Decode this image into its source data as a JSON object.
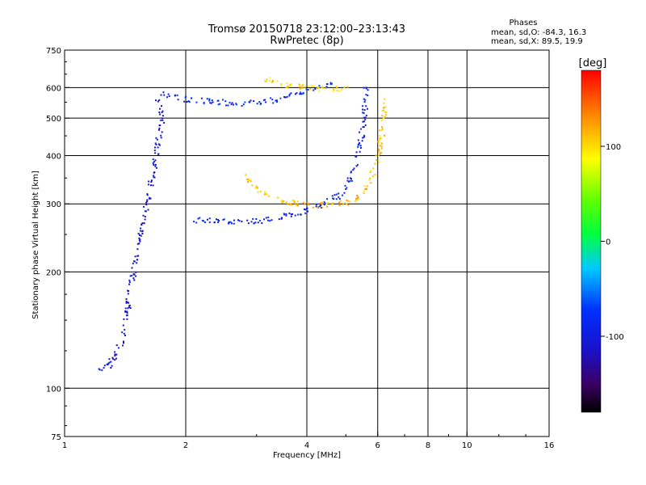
{
  "header": {
    "title": "Tromsø 20150718 23:12:00–23:13:43",
    "subtitle": "RwPretec (8p)"
  },
  "stats": {
    "heading": "Phases",
    "line_o": "mean, sd,O: -84.3, 16.3",
    "line_x": "mean, sd,X:  89.5, 19.9"
  },
  "colorbar": {
    "label": "[deg]",
    "ticks": [
      {
        "value": 100,
        "label": "100"
      },
      {
        "value": 0,
        "label": "0"
      },
      {
        "value": -100,
        "label": "-100"
      }
    ],
    "range": [
      -180,
      180
    ],
    "colormap": "rainbow-black-violet-blue-cyan-green-yellow-red"
  },
  "chart_data": {
    "type": "scatter",
    "xlabel": "Frequency [MHz]",
    "ylabel": "Stationary phase Virtual Height [km]",
    "xscale": "log",
    "yscale": "log",
    "xlim": [
      1,
      16
    ],
    "ylim": [
      75,
      750
    ],
    "grid": true,
    "xticks": [
      {
        "value": 1,
        "label": "1",
        "major": false
      },
      {
        "value": 2,
        "label": "2",
        "major": true
      },
      {
        "value": 4,
        "label": "4",
        "major": true
      },
      {
        "value": 6,
        "label": "6",
        "major": true
      },
      {
        "value": 8,
        "label": "8",
        "major": true
      },
      {
        "value": 10,
        "label": "10",
        "major": true
      },
      {
        "value": 16,
        "label": "16",
        "major": false
      }
    ],
    "yticks": [
      {
        "value": 75,
        "label": "75",
        "major": false
      },
      {
        "value": 100,
        "label": "100",
        "major": true
      },
      {
        "value": 200,
        "label": "200",
        "major": true
      },
      {
        "value": 300,
        "label": "300",
        "major": true
      },
      {
        "value": 400,
        "label": "400",
        "major": true
      },
      {
        "value": 500,
        "label": "500",
        "major": true
      },
      {
        "value": 600,
        "label": "600",
        "major": true
      },
      {
        "value": 750,
        "label": "750",
        "major": false
      }
    ],
    "traces": [
      {
        "description": "O-mode F region trace",
        "phase_deg": -95,
        "points": [
          [
            2.1,
            272
          ],
          [
            2.3,
            272
          ],
          [
            2.5,
            270
          ],
          [
            2.8,
            270
          ],
          [
            3.2,
            272
          ],
          [
            3.6,
            280
          ],
          [
            4.0,
            288
          ],
          [
            4.4,
            300
          ],
          [
            4.8,
            315
          ],
          [
            5.1,
            340
          ],
          [
            5.3,
            380
          ],
          [
            5.45,
            430
          ],
          [
            5.55,
            500
          ],
          [
            5.6,
            560
          ],
          [
            5.65,
            610
          ]
        ]
      },
      {
        "description": "X-mode F region trace",
        "phase_deg": 110,
        "points": [
          [
            2.8,
            355
          ],
          [
            3.0,
            330
          ],
          [
            3.3,
            310
          ],
          [
            3.7,
            302
          ],
          [
            4.2,
            296
          ],
          [
            4.7,
            298
          ],
          [
            5.2,
            305
          ],
          [
            5.6,
            325
          ],
          [
            5.9,
            370
          ],
          [
            6.1,
            430
          ],
          [
            6.2,
            500
          ],
          [
            6.3,
            570
          ]
        ]
      },
      {
        "description": "O-mode multiple-hop trace",
        "phase_deg": -90,
        "points": [
          [
            1.75,
            575
          ],
          [
            1.9,
            565
          ],
          [
            2.1,
            555
          ],
          [
            2.4,
            550
          ],
          [
            2.7,
            545
          ],
          [
            3.0,
            548
          ],
          [
            3.4,
            560
          ],
          [
            3.8,
            580
          ],
          [
            4.2,
            595
          ],
          [
            4.6,
            610
          ]
        ]
      },
      {
        "description": "X-mode multiple-hop trace",
        "phase_deg": 105,
        "points": [
          [
            3.1,
            640
          ],
          [
            3.3,
            620
          ],
          [
            3.6,
            605
          ],
          [
            4.0,
            600
          ],
          [
            4.5,
            595
          ],
          [
            5.0,
            598
          ]
        ]
      },
      {
        "description": "Low-frequency E/F1 spread",
        "phase_deg": -110,
        "points": [
          [
            1.2,
            110
          ],
          [
            1.3,
            115
          ],
          [
            1.4,
            135
          ],
          [
            1.45,
            175
          ],
          [
            1.5,
            210
          ],
          [
            1.55,
            250
          ],
          [
            1.6,
            300
          ],
          [
            1.65,
            350
          ],
          [
            1.7,
            420
          ],
          [
            1.75,
            500
          ],
          [
            1.7,
            560
          ]
        ]
      }
    ]
  }
}
